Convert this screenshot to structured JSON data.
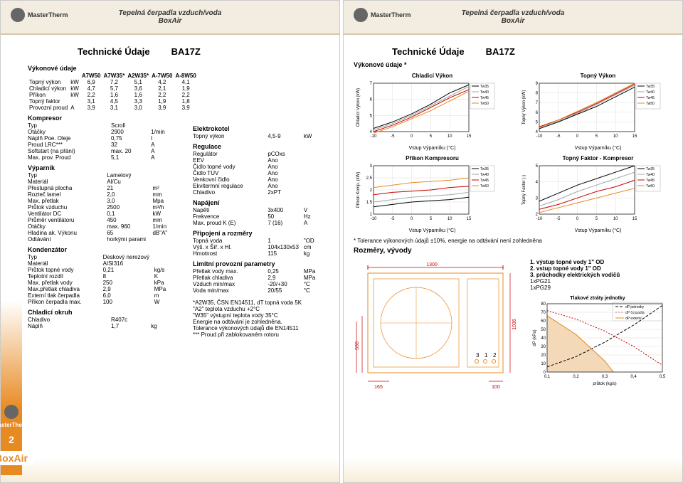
{
  "header": {
    "brand": "MasterTherm",
    "title": "Tepelná čerpadla vzduch/voda",
    "sub": "BoxAir"
  },
  "page1": {
    "section_title": "Technické Údaje",
    "model": "BA17Z",
    "perf": {
      "title": "Výkonové údaje",
      "cols": [
        "",
        "",
        "A7W50",
        "A7W35*",
        "A2W35*",
        "A-7W50",
        "A-8W50"
      ],
      "rows": [
        [
          "Topný výkon",
          "kW",
          "6,9",
          "7,2",
          "5,1",
          "4,2",
          "4,1"
        ],
        [
          "Chladicí výkon",
          "kW",
          "4,7",
          "5,7",
          "3,6",
          "2,1",
          "1,9"
        ],
        [
          "Příkon",
          "kW",
          "2,2",
          "1,6",
          "1,6",
          "2,2",
          "2,2"
        ],
        [
          "Topný faktor",
          "",
          "3,1",
          "4,5",
          "3,3",
          "1,9",
          "1,8"
        ],
        [
          "Provozní proud",
          "A",
          "3,9",
          "3,1",
          "3,0",
          "3,9",
          "3,9"
        ]
      ]
    },
    "kompresor": {
      "title": "Kompresor",
      "rows": [
        [
          "Typ",
          "Scroll",
          ""
        ],
        [
          "Otáčky",
          "2900",
          "1/min"
        ],
        [
          "Náplň Poe. Oleje",
          "0,75",
          "l"
        ],
        [
          "Proud LRC***",
          "32",
          "A"
        ],
        [
          "Softstart (na přání)",
          "max. 20",
          "A"
        ],
        [
          "Max. prov. Proud",
          "5,1",
          "A"
        ]
      ]
    },
    "vyparnik": {
      "title": "Výparník",
      "rows": [
        [
          "Typ",
          "Lamelový",
          ""
        ],
        [
          "Materiál",
          "Al/Cu",
          ""
        ],
        [
          "Přestupná plocha",
          "21",
          "m²"
        ],
        [
          "Rozteč lamel",
          "2,0",
          "mm"
        ],
        [
          "Max. přetlak",
          "3,0",
          "Mpa"
        ],
        [
          "Průtok vzduchu",
          "2500",
          "m³/h"
        ],
        [
          "Ventilátor DC",
          "0,1",
          "kW"
        ],
        [
          "Průměr ventilátoru",
          "450",
          "mm"
        ],
        [
          "Otáčky",
          "max. 960",
          "1/min"
        ],
        [
          "Hladina ak. Výkonu",
          "65",
          "dB\"A\""
        ],
        [
          "Odtávání",
          "horkými parami",
          ""
        ]
      ]
    },
    "kondenzator": {
      "title": "Kondenzátor",
      "rows": [
        [
          "Typ",
          "Deskový nerezový",
          ""
        ],
        [
          "Materiál",
          "AISI316",
          ""
        ],
        [
          "Průtok topné vody",
          "0,21",
          "kg/s"
        ],
        [
          "Teplotní rozdíl",
          "8",
          "K"
        ],
        [
          "Max. přetlak vody",
          "250",
          "kPa"
        ],
        [
          "Max.přetlak chladiva",
          "2,9",
          "MPa"
        ],
        [
          "Externí tlak čerpadla",
          "6,0",
          "m"
        ],
        [
          "Příkon čerpadla max.",
          "100",
          "W"
        ]
      ]
    },
    "chladici_okruh": {
      "title": "Chladicí okruh",
      "rows": [
        [
          "Chladivo",
          "R407c",
          ""
        ],
        [
          "Náplň",
          "1,7",
          "kg"
        ]
      ]
    },
    "elektrokotel": {
      "title": "Elektrokotel",
      "rows": [
        [
          "Topný výkon",
          "4,5-9",
          "kW"
        ]
      ]
    },
    "regulace": {
      "title": "Regulace",
      "rows": [
        [
          "Regulátor",
          "pCOxs",
          ""
        ],
        [
          "EEV",
          "Ano",
          ""
        ],
        [
          "Čidlo topné vody",
          "Ano",
          ""
        ],
        [
          "Čidlo TUV",
          "Ano",
          ""
        ],
        [
          "Venkovní čidlo",
          "Ano",
          ""
        ],
        [
          "Ekvitermní regulace",
          "Ano",
          ""
        ],
        [
          "Chladivo",
          "2xPT",
          ""
        ]
      ]
    },
    "napajeni": {
      "title": "Napájení",
      "rows": [
        [
          "Napětí",
          "3x400",
          "V"
        ],
        [
          "Frekvence",
          "50",
          "Hz"
        ],
        [
          "Max. proud K (E)",
          "7 (16)",
          "A"
        ]
      ]
    },
    "pripojeni": {
      "title": "Připojení a rozměry",
      "rows": [
        [
          "Topná voda",
          "1",
          "\"OD"
        ],
        [
          "Výš. x Šíř. x Hl.",
          "104x130x53",
          "cm"
        ],
        [
          "Hmotnost",
          "115",
          "kg"
        ]
      ]
    },
    "limitni": {
      "title": "Limitní provozní parametry",
      "rows": [
        [
          "Přetlak vody max.",
          "0,25",
          "MPa"
        ],
        [
          "Přetlak chladiva",
          "2,9",
          "MPa"
        ],
        [
          "Vzduch min/max",
          "-20/+30",
          "°C"
        ],
        [
          "Voda min/max",
          "20/55",
          "°C"
        ]
      ]
    },
    "footnotes": [
      "*A2W35, ČSN EN14511, dT topná voda 5K",
      "\"A2\"     teplota vzduchu +2°C",
      "\"W35\"   výstupní teplota vody 35°C",
      "Energie na odtávání je zohledněna.",
      "Tolerance výkonových údajů dle EN14511",
      "*** Proud při zablokovaném rotoru"
    ],
    "page_number": "2",
    "boxair": "BoxAir"
  },
  "page2": {
    "section_title": "Technické Údaje",
    "model": "BA17Z",
    "perf_title": "Výkonové údaje *",
    "charts": {
      "c1": {
        "title": "Chladicí Výkon",
        "ylabel": "Chladicí Výkon (kW)",
        "xlabel": "Vstup Výparníku (°C)",
        "xlim": [
          -10,
          15
        ],
        "xstep": 5,
        "ylim": [
          4,
          7
        ],
        "ystep": 1,
        "series": [
          {
            "label": "Tw35",
            "color": "#000",
            "pts": [
              [
                -10,
                4.2
              ],
              [
                -5,
                4.6
              ],
              [
                0,
                5.1
              ],
              [
                5,
                5.7
              ],
              [
                10,
                6.4
              ],
              [
                15,
                6.9
              ]
            ]
          },
          {
            "label": "Tw40",
            "color": "#9aa",
            "pts": [
              [
                -10,
                4.1
              ],
              [
                -5,
                4.5
              ],
              [
                0,
                5.0
              ],
              [
                5,
                5.6
              ],
              [
                10,
                6.2
              ],
              [
                15,
                6.8
              ]
            ]
          },
          {
            "label": "Tw45",
            "color": "#cc0000",
            "pts": [
              [
                -10,
                4.0
              ],
              [
                -5,
                4.4
              ],
              [
                0,
                4.9
              ],
              [
                5,
                5.5
              ],
              [
                10,
                6.1
              ],
              [
                15,
                6.6
              ]
            ]
          },
          {
            "label": "Tw50",
            "color": "#e88a22",
            "pts": [
              [
                -10,
                3.9
              ],
              [
                -5,
                4.3
              ],
              [
                0,
                4.8
              ],
              [
                5,
                5.3
              ],
              [
                10,
                5.9
              ],
              [
                15,
                6.5
              ]
            ]
          }
        ]
      },
      "c2": {
        "title": "Topný Výkon",
        "ylabel": "Topný Výkon (kW)",
        "xlabel": "Vstup Výparníku (°C)",
        "xlim": [
          -10,
          15
        ],
        "xstep": 5,
        "ylim": [
          4,
          9
        ],
        "ystep": 1,
        "series": [
          {
            "label": "Tw35",
            "color": "#000",
            "pts": [
              [
                -10,
                4.3
              ],
              [
                -5,
                5.0
              ],
              [
                0,
                5.8
              ],
              [
                5,
                6.6
              ],
              [
                10,
                7.6
              ],
              [
                15,
                8.6
              ]
            ]
          },
          {
            "label": "Tw40",
            "color": "#9aa",
            "pts": [
              [
                -10,
                4.4
              ],
              [
                -5,
                5.1
              ],
              [
                0,
                5.9
              ],
              [
                5,
                6.8
              ],
              [
                10,
                7.8
              ],
              [
                15,
                8.8
              ]
            ]
          },
          {
            "label": "Tw45",
            "color": "#cc0000",
            "pts": [
              [
                -10,
                4.5
              ],
              [
                -5,
                5.2
              ],
              [
                0,
                6.0
              ],
              [
                5,
                6.9
              ],
              [
                10,
                7.9
              ],
              [
                15,
                8.9
              ]
            ]
          },
          {
            "label": "Tw50",
            "color": "#e88a22",
            "pts": [
              [
                -10,
                4.4
              ],
              [
                -5,
                5.2
              ],
              [
                0,
                6.1
              ],
              [
                5,
                7.0
              ],
              [
                10,
                8.0
              ],
              [
                15,
                9.0
              ]
            ]
          }
        ]
      },
      "c3": {
        "title": "Příkon Kompresoru",
        "ylabel": "Příkon Komp. (kW)",
        "xlabel": "Vstup Výparníku (°C)",
        "xlim": [
          -10,
          15
        ],
        "xstep": 5,
        "ylim": [
          1,
          3
        ],
        "ystep": 0.5,
        "series": [
          {
            "label": "Tw35",
            "color": "#000",
            "pts": [
              [
                -10,
                1.3
              ],
              [
                -5,
                1.4
              ],
              [
                0,
                1.5
              ],
              [
                5,
                1.55
              ],
              [
                10,
                1.6
              ],
              [
                15,
                1.7
              ]
            ]
          },
          {
            "label": "Tw40",
            "color": "#9aa",
            "pts": [
              [
                -10,
                1.5
              ],
              [
                -5,
                1.6
              ],
              [
                0,
                1.7
              ],
              [
                5,
                1.75
              ],
              [
                10,
                1.8
              ],
              [
                15,
                1.9
              ]
            ]
          },
          {
            "label": "Tw45",
            "color": "#cc0000",
            "pts": [
              [
                -10,
                1.8
              ],
              [
                -5,
                1.9
              ],
              [
                0,
                1.95
              ],
              [
                5,
                2.0
              ],
              [
                10,
                2.1
              ],
              [
                15,
                2.15
              ]
            ]
          },
          {
            "label": "Tw50",
            "color": "#e88a22",
            "pts": [
              [
                -10,
                2.1
              ],
              [
                -5,
                2.2
              ],
              [
                0,
                2.3
              ],
              [
                5,
                2.35
              ],
              [
                10,
                2.4
              ],
              [
                15,
                2.5
              ]
            ]
          }
        ]
      },
      "c4": {
        "title": "Topný Faktor - Kompresor",
        "ylabel": "Topný Faktor (-)",
        "xlabel": "Vstup Výparníku (°C)",
        "xlim": [
          -10,
          15
        ],
        "xstep": 5,
        "ylim": [
          2,
          5
        ],
        "ystep": 1,
        "series": [
          {
            "label": "Tw35",
            "color": "#000",
            "pts": [
              [
                -10,
                2.8
              ],
              [
                -5,
                3.3
              ],
              [
                0,
                3.8
              ],
              [
                5,
                4.2
              ],
              [
                10,
                4.6
              ],
              [
                15,
                5.0
              ]
            ]
          },
          {
            "label": "Tw40",
            "color": "#9aa",
            "pts": [
              [
                -10,
                2.5
              ],
              [
                -5,
                2.9
              ],
              [
                0,
                3.4
              ],
              [
                5,
                3.8
              ],
              [
                10,
                4.2
              ],
              [
                15,
                4.6
              ]
            ]
          },
          {
            "label": "Tw45",
            "color": "#cc0000",
            "pts": [
              [
                -10,
                2.3
              ],
              [
                -5,
                2.6
              ],
              [
                0,
                3.0
              ],
              [
                5,
                3.4
              ],
              [
                10,
                3.7
              ],
              [
                15,
                4.1
              ]
            ]
          },
          {
            "label": "Tw50",
            "color": "#e88a22",
            "pts": [
              [
                -10,
                2.1
              ],
              [
                -5,
                2.4
              ],
              [
                0,
                2.7
              ],
              [
                5,
                3.0
              ],
              [
                10,
                3.3
              ],
              [
                15,
                3.6
              ]
            ]
          }
        ]
      }
    },
    "tolerance": "* Tolerance výkonových údajů ±10%, energie na odtávání není zohledněna",
    "outputs_title": "Rozměry, vývody",
    "outputs_list": [
      "1. výstup topné vody 1\" OD",
      "2. vstup topné vody 1\" OD",
      "3. průchodky elektrických vodičů",
      "    1xPG21",
      "    1xPG29"
    ],
    "diagram": {
      "width_top": "1300",
      "width_left": "165",
      "width_right": "100",
      "h_total": "1036",
      "h_low": "536",
      "h_low2": "506",
      "ports": [
        "3",
        "1",
        "2"
      ]
    },
    "pressure_chart": {
      "title": "Tlakové ztráty jednotky",
      "ylabel": "dP (kPa)",
      "xlabel": "průtok (kg/s)",
      "xlim": [
        0.1,
        0.5
      ],
      "xstep": 0.1,
      "ylim": [
        0,
        80
      ],
      "ystep": 10,
      "legend": [
        "dP jednotky",
        "dP čerpadla",
        "dP externí"
      ],
      "series": [
        {
          "color": "#000",
          "dash": "4,2",
          "pts": [
            [
              0.1,
              6
            ],
            [
              0.2,
              18
            ],
            [
              0.3,
              35
            ],
            [
              0.4,
              55
            ],
            [
              0.5,
              78
            ]
          ]
        },
        {
          "color": "#cc0000",
          "dash": "2,2",
          "pts": [
            [
              0.1,
              72
            ],
            [
              0.2,
              62
            ],
            [
              0.3,
              48
            ],
            [
              0.4,
              30
            ],
            [
              0.5,
              8
            ]
          ]
        },
        {
          "color": "#e88a22",
          "dash": "",
          "fill": "#f3d9b8",
          "pts": [
            [
              0.1,
              66
            ],
            [
              0.2,
              44
            ],
            [
              0.3,
              13
            ],
            [
              0.33,
              0
            ]
          ]
        }
      ]
    }
  }
}
